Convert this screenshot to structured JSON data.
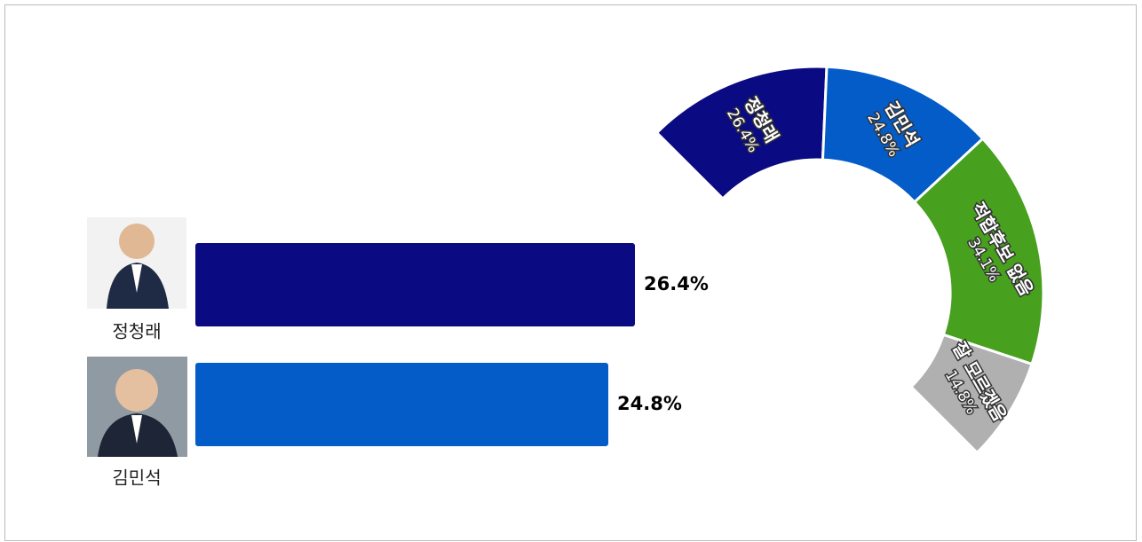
{
  "chart_data": [
    {
      "type": "hbar",
      "categories": [
        "정청래",
        "김민석"
      ],
      "values": [
        26.4,
        24.8
      ],
      "value_labels": [
        "26.4%",
        "24.8%"
      ],
      "colors": [
        "#0a0a82",
        "#035cc8"
      ]
    },
    {
      "type": "donut",
      "categories": [
        "정청래",
        "김민석",
        "적합후보 없음",
        "잘 모르겠음"
      ],
      "values": [
        26.4,
        24.8,
        34.1,
        14.8
      ],
      "value_labels": [
        "26.4%",
        "24.8%",
        "34.1%",
        "14.8%"
      ],
      "colors": [
        "#0a0a82",
        "#035cc8",
        "#48a01f",
        "#b0b0b0"
      ]
    }
  ]
}
